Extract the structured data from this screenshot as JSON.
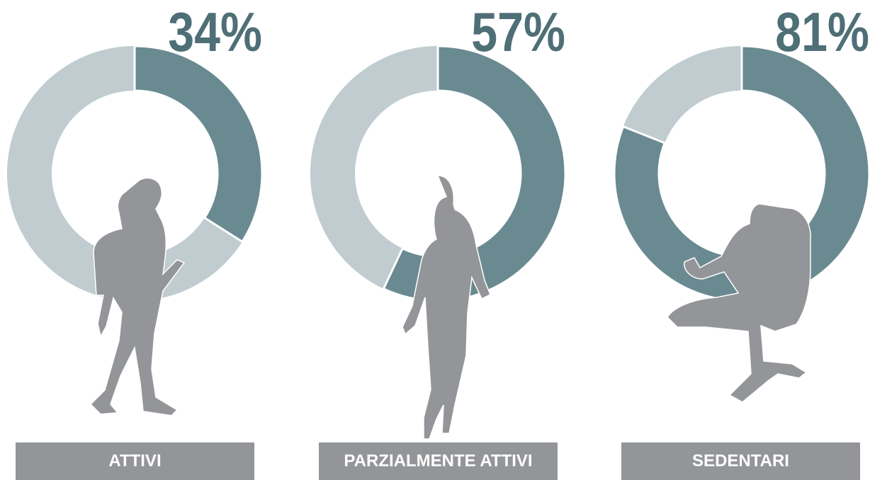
{
  "chart_data": [
    {
      "type": "donut",
      "categories": [
        "ATTIVI"
      ],
      "values": [
        34
      ],
      "value_labels": [
        "34%"
      ],
      "color": "#6a8a91",
      "track_color": "#c0ccd0"
    },
    {
      "type": "donut",
      "categories": [
        "PARZIALMENTE ATTIVI"
      ],
      "values": [
        57
      ],
      "value_labels": [
        "57%"
      ],
      "color": "#6a8a91",
      "track_color": "#c0ccd0"
    },
    {
      "type": "donut",
      "categories": [
        "SEDENTARI"
      ],
      "values": [
        81
      ],
      "value_labels": [
        "81%"
      ],
      "color": "#6a8a91",
      "track_color": "#c0ccd0"
    }
  ]
}
